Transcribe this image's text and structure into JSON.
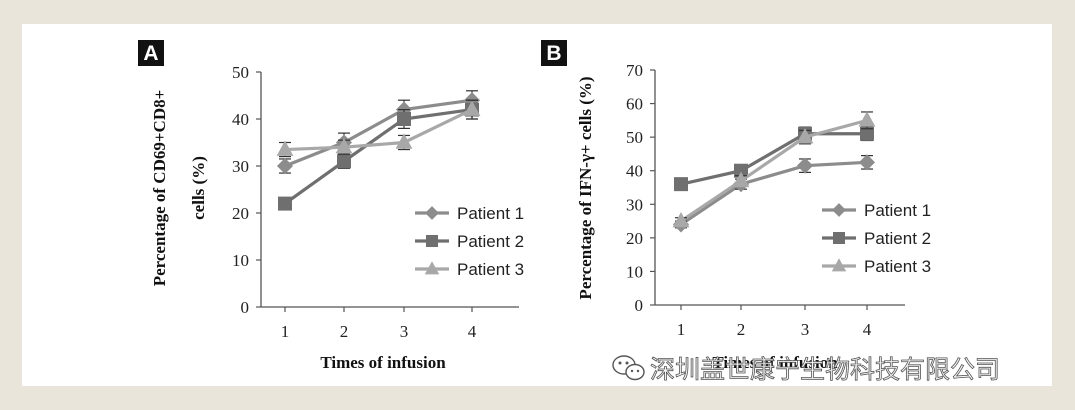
{
  "colors": {
    "page_background": "#e9e5da",
    "patient_1": "#8c8c8c",
    "patient_2": "#6f6f6f",
    "patient_3": "#a8a8a8",
    "axis": "#555555"
  },
  "watermark": {
    "text": "深圳盖世康宁生物科技有限公司",
    "icon": "wechat-icon"
  },
  "chart_data": [
    {
      "type": "line",
      "panel_label": "A",
      "title": "",
      "xlabel": "Times of infusion",
      "ylabel": "Percentage of CD69+CD8+ cells (%)",
      "ylabel_lines": [
        "Percentage of CD69+CD8+",
        "cells (%)"
      ],
      "x": [
        1,
        2,
        3,
        4
      ],
      "x_tick_labels": [
        "1",
        "2",
        "3",
        "4"
      ],
      "ylim": [
        0,
        50
      ],
      "y_ticks": [
        0,
        10,
        20,
        30,
        40,
        50
      ],
      "grid": false,
      "legend_position": "right-middle",
      "series": [
        {
          "name": "Patient 1",
          "marker": "diamond",
          "values": [
            30,
            35,
            42,
            44
          ],
          "errors": [
            1.5,
            2,
            2,
            2
          ]
        },
        {
          "name": "Patient 2",
          "marker": "square",
          "values": [
            22,
            31,
            40,
            42
          ],
          "errors": [
            0.5,
            1.5,
            2,
            2
          ]
        },
        {
          "name": "Patient 3",
          "marker": "triangle",
          "values": [
            33.5,
            34,
            35,
            42
          ],
          "errors": [
            1.5,
            1.5,
            1.5,
            2
          ]
        }
      ]
    },
    {
      "type": "line",
      "panel_label": "B",
      "title": "",
      "xlabel": "Times of infusion",
      "ylabel": "Percentage of IFN-γ+ cells (%)",
      "ylabel_lines": [
        "Percentage of IFN-γ+ cells (%)"
      ],
      "x": [
        1,
        2,
        3,
        4
      ],
      "x_tick_labels": [
        "1",
        "2",
        "3",
        "4"
      ],
      "ylim": [
        0,
        70
      ],
      "y_ticks": [
        0,
        10,
        20,
        30,
        40,
        50,
        60,
        70
      ],
      "grid": false,
      "legend_position": "right-middle",
      "series": [
        {
          "name": "Patient 1",
          "marker": "diamond",
          "values": [
            24,
            36,
            41.5,
            42.5
          ],
          "errors": [
            1,
            1.5,
            2,
            2
          ]
        },
        {
          "name": "Patient 2",
          "marker": "square",
          "values": [
            36,
            40,
            51,
            51
          ],
          "errors": [
            0.5,
            1.5,
            2,
            2
          ]
        },
        {
          "name": "Patient 3",
          "marker": "triangle",
          "values": [
            25,
            37,
            50,
            55
          ],
          "errors": [
            1,
            1.5,
            2,
            2.5
          ]
        }
      ]
    }
  ]
}
